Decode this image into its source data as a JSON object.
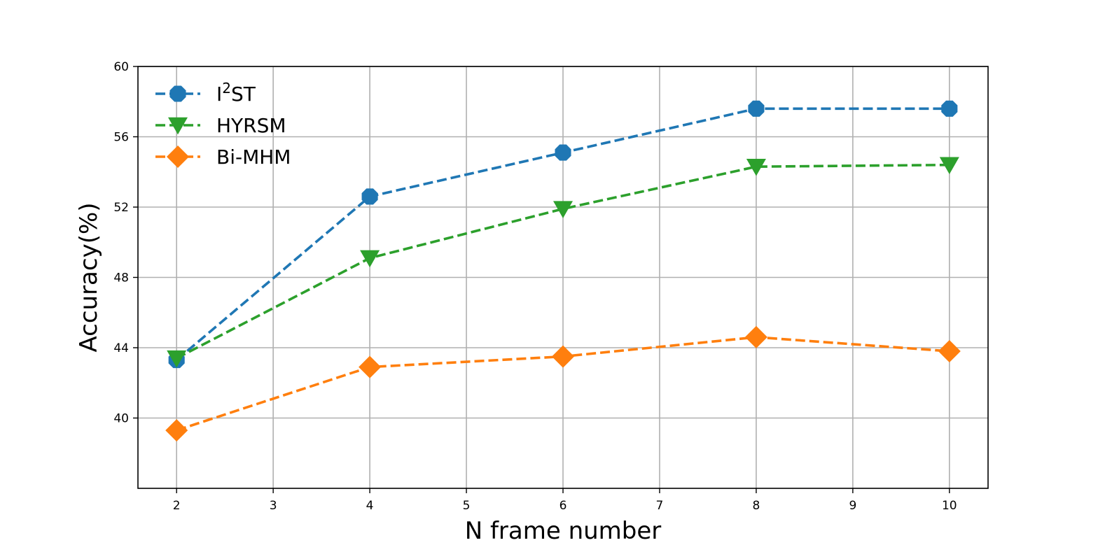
{
  "chart_data": {
    "type": "line",
    "xlabel": "N frame number",
    "ylabel": "Accuracy(%)",
    "xlim": [
      1.6,
      10.4
    ],
    "ylim": [
      36,
      60
    ],
    "x_ticks": [
      2,
      3,
      4,
      5,
      6,
      7,
      8,
      9,
      10
    ],
    "y_ticks": [
      40,
      44,
      48,
      52,
      56,
      60
    ],
    "grid": true,
    "legend_position": "upper-left",
    "x": [
      2,
      4,
      6,
      8,
      10
    ],
    "series": [
      {
        "name": "I²ST",
        "name_base": "I",
        "name_sup": "2",
        "name_rest": "ST",
        "color": "#1f77b4",
        "marker": "octagon",
        "values": [
          43.3,
          52.6,
          55.1,
          57.6,
          57.6
        ]
      },
      {
        "name": "HYRSM",
        "color": "#2ca02c",
        "marker": "triangle-down",
        "values": [
          43.4,
          49.1,
          51.9,
          54.3,
          54.4
        ]
      },
      {
        "name": "Bi-MHM",
        "color": "#ff7f0e",
        "marker": "diamond",
        "values": [
          39.3,
          42.9,
          43.5,
          44.6,
          43.8
        ]
      }
    ]
  }
}
